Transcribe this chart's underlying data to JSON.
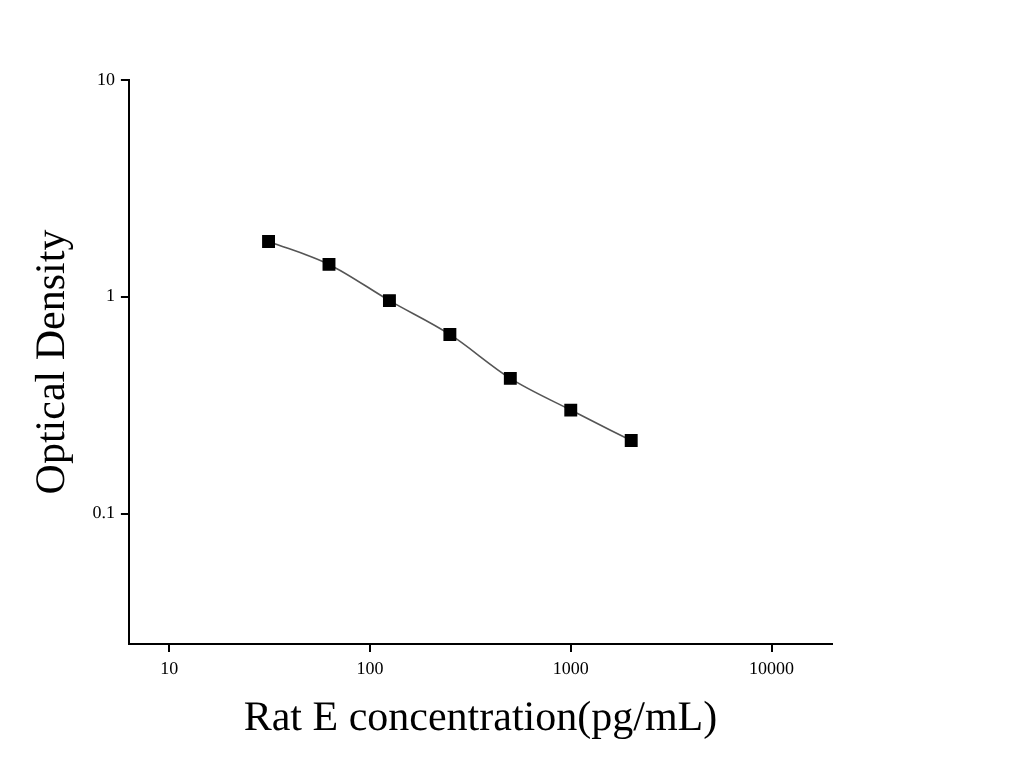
{
  "chart_data": {
    "type": "line",
    "xlabel": "Rat E concentration(pg/mL)",
    "ylabel": "Optical Density",
    "x": [
      31.25,
      62.5,
      125,
      250,
      500,
      1000,
      2000
    ],
    "series": [
      {
        "color": "#000000",
        "values": [
          1.8,
          1.41,
          0.96,
          0.67,
          0.42,
          0.3,
          0.217
        ]
      }
    ],
    "log": "xy",
    "xlim": [
      6.3,
      20000
    ],
    "ylim": [
      0.025,
      10
    ],
    "xticks": [
      10,
      100,
      1000,
      10000
    ],
    "yticks": [
      0.1,
      1,
      10
    ],
    "grid": false,
    "legend": false,
    "marker": "square",
    "line_style": "solid"
  }
}
